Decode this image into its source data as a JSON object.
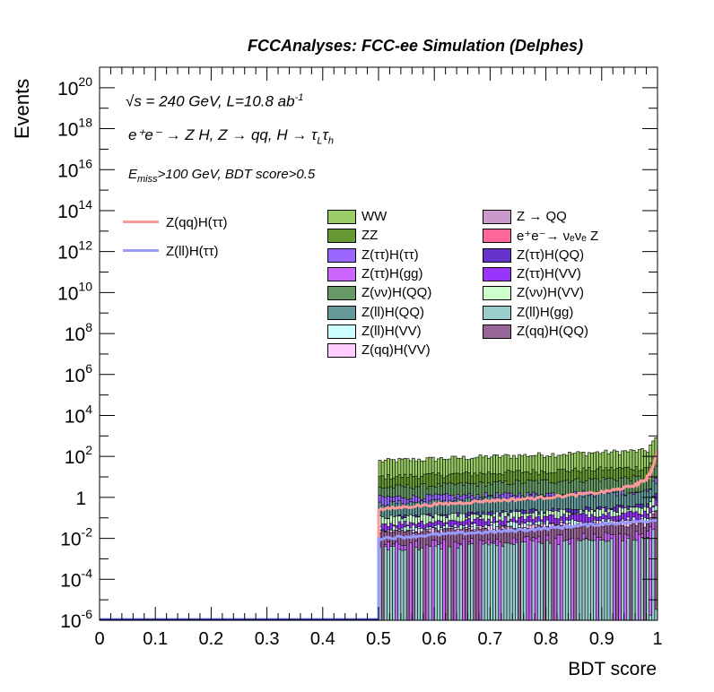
{
  "header": {
    "title": "FCCAnalyses: FCC-ee Simulation (Delphes)"
  },
  "annotations": {
    "line1_prefix": "√s = 240 GeV, L=10.8 ab",
    "line1_sup": "-1",
    "line2_text": "e⁺e⁻ → Z H, Z → qq, H → τ",
    "line2_sub1": "L",
    "line2_mid": "τ",
    "line2_sub2": "h",
    "line3_e": "E",
    "line3_sub": "miss",
    "line3_rest": ">100 GeV, BDT score>0.5"
  },
  "chart_data": {
    "type": "stacked histogram",
    "title": "",
    "xlabel": "BDT score",
    "ylabel": "Events",
    "xlim": [
      0,
      1
    ],
    "ylim": [
      1e-06,
      1e+21
    ],
    "yscale": "log",
    "x_ticks": [
      "0",
      "0.1",
      "0.2",
      "0.3",
      "0.4",
      "0.5",
      "0.6",
      "0.7",
      "0.8",
      "0.9",
      "1"
    ],
    "y_ticks": [
      {
        "base": "10",
        "exp": "-6",
        "value": 1e-06
      },
      {
        "base": "10",
        "exp": "-4",
        "value": 0.0001
      },
      {
        "base": "10",
        "exp": "-2",
        "value": 0.01
      },
      {
        "base": "1",
        "exp": "",
        "value": 1
      },
      {
        "base": "10",
        "exp": "2",
        "value": 100.0
      },
      {
        "base": "10",
        "exp": "4",
        "value": 10000.0
      },
      {
        "base": "10",
        "exp": "6",
        "value": 1000000.0
      },
      {
        "base": "10",
        "exp": "8",
        "value": 100000000.0
      },
      {
        "base": "10",
        "exp": "10",
        "value": 10000000000.0
      },
      {
        "base": "10",
        "exp": "12",
        "value": 1000000000000.0
      },
      {
        "base": "10",
        "exp": "14",
        "value": 100000000000000.0
      },
      {
        "base": "10",
        "exp": "16",
        "value": 1e+16
      },
      {
        "base": "10",
        "exp": "18",
        "value": 1e+18
      },
      {
        "base": "10",
        "exp": "20",
        "value": 1e+20
      }
    ],
    "stack_series": [
      {
        "name": "WW",
        "color": "#99cc66",
        "level_low": 60,
        "level_high": 200
      },
      {
        "name": "ZZ",
        "color": "#669933",
        "level_low": 10,
        "level_high": 30
      },
      {
        "name": "Z(ττ)H(ττ)",
        "color": "#9966ff",
        "level_low": 1,
        "level_high": 2
      },
      {
        "name": "Z(ττ)H(gg)",
        "color": "#cc66ff",
        "level_low": 0.005,
        "level_high": 0.02
      },
      {
        "name": "Z(νν)H(QQ)",
        "color": "#669966",
        "level_low": 3,
        "level_high": 10
      },
      {
        "name": "Z(ll)H(QQ)",
        "color": "#669999",
        "level_low": 0.5,
        "level_high": 2
      },
      {
        "name": "Z(ll)H(VV)",
        "color": "#ccffff",
        "level_low": 0.03,
        "level_high": 0.1
      },
      {
        "name": "Z(qq)H(VV)",
        "color": "#ffccff",
        "level_low": 0.02,
        "level_high": 0.08
      },
      {
        "name": "Z → QQ",
        "color": "#cc99cc",
        "level_low": 0,
        "level_high": 0
      },
      {
        "name": "e⁺e⁻→ νₑνₑ Z",
        "color": "#ff6699",
        "level_low": 0,
        "level_high": 0
      },
      {
        "name": "Z(ττ)H(QQ)",
        "color": "#6633cc",
        "level_low": 0.1,
        "level_high": 0.4
      },
      {
        "name": "Z(ττ)H(VV)",
        "color": "#9933ff",
        "level_low": 0.05,
        "level_high": 0.2
      },
      {
        "name": "Z(νν)H(VV)",
        "color": "#ccffcc",
        "level_low": 0.1,
        "level_high": 0.3
      },
      {
        "name": "Z(ll)H(gg)",
        "color": "#99cccc",
        "level_low": 0.003,
        "level_high": 0.01
      },
      {
        "name": "Z(qq)H(QQ)",
        "color": "#996699",
        "level_low": 0.02,
        "level_high": 0.05
      }
    ],
    "signal_series": [
      {
        "name": "Z(qq)H(ττ)",
        "color": "#ff9999",
        "x": [
          0.5,
          0.55,
          0.6,
          0.65,
          0.7,
          0.75,
          0.8,
          0.85,
          0.9,
          0.93,
          0.96,
          0.98,
          0.99,
          1.0
        ],
        "y": [
          0.25,
          0.35,
          0.45,
          0.55,
          0.7,
          0.8,
          1.0,
          1.3,
          1.8,
          2.5,
          4,
          8,
          20,
          200
        ]
      },
      {
        "name": "Z(ll)H(ττ)",
        "color": "#9999ff",
        "x": [
          0.5,
          0.55,
          0.6,
          0.65,
          0.7,
          0.75,
          0.8,
          0.85,
          0.9,
          0.95,
          1.0
        ],
        "y": [
          0.01,
          0.012,
          0.015,
          0.018,
          0.02,
          0.025,
          0.03,
          0.04,
          0.05,
          0.06,
          0.08
        ]
      }
    ],
    "legend_position": "top-right"
  }
}
